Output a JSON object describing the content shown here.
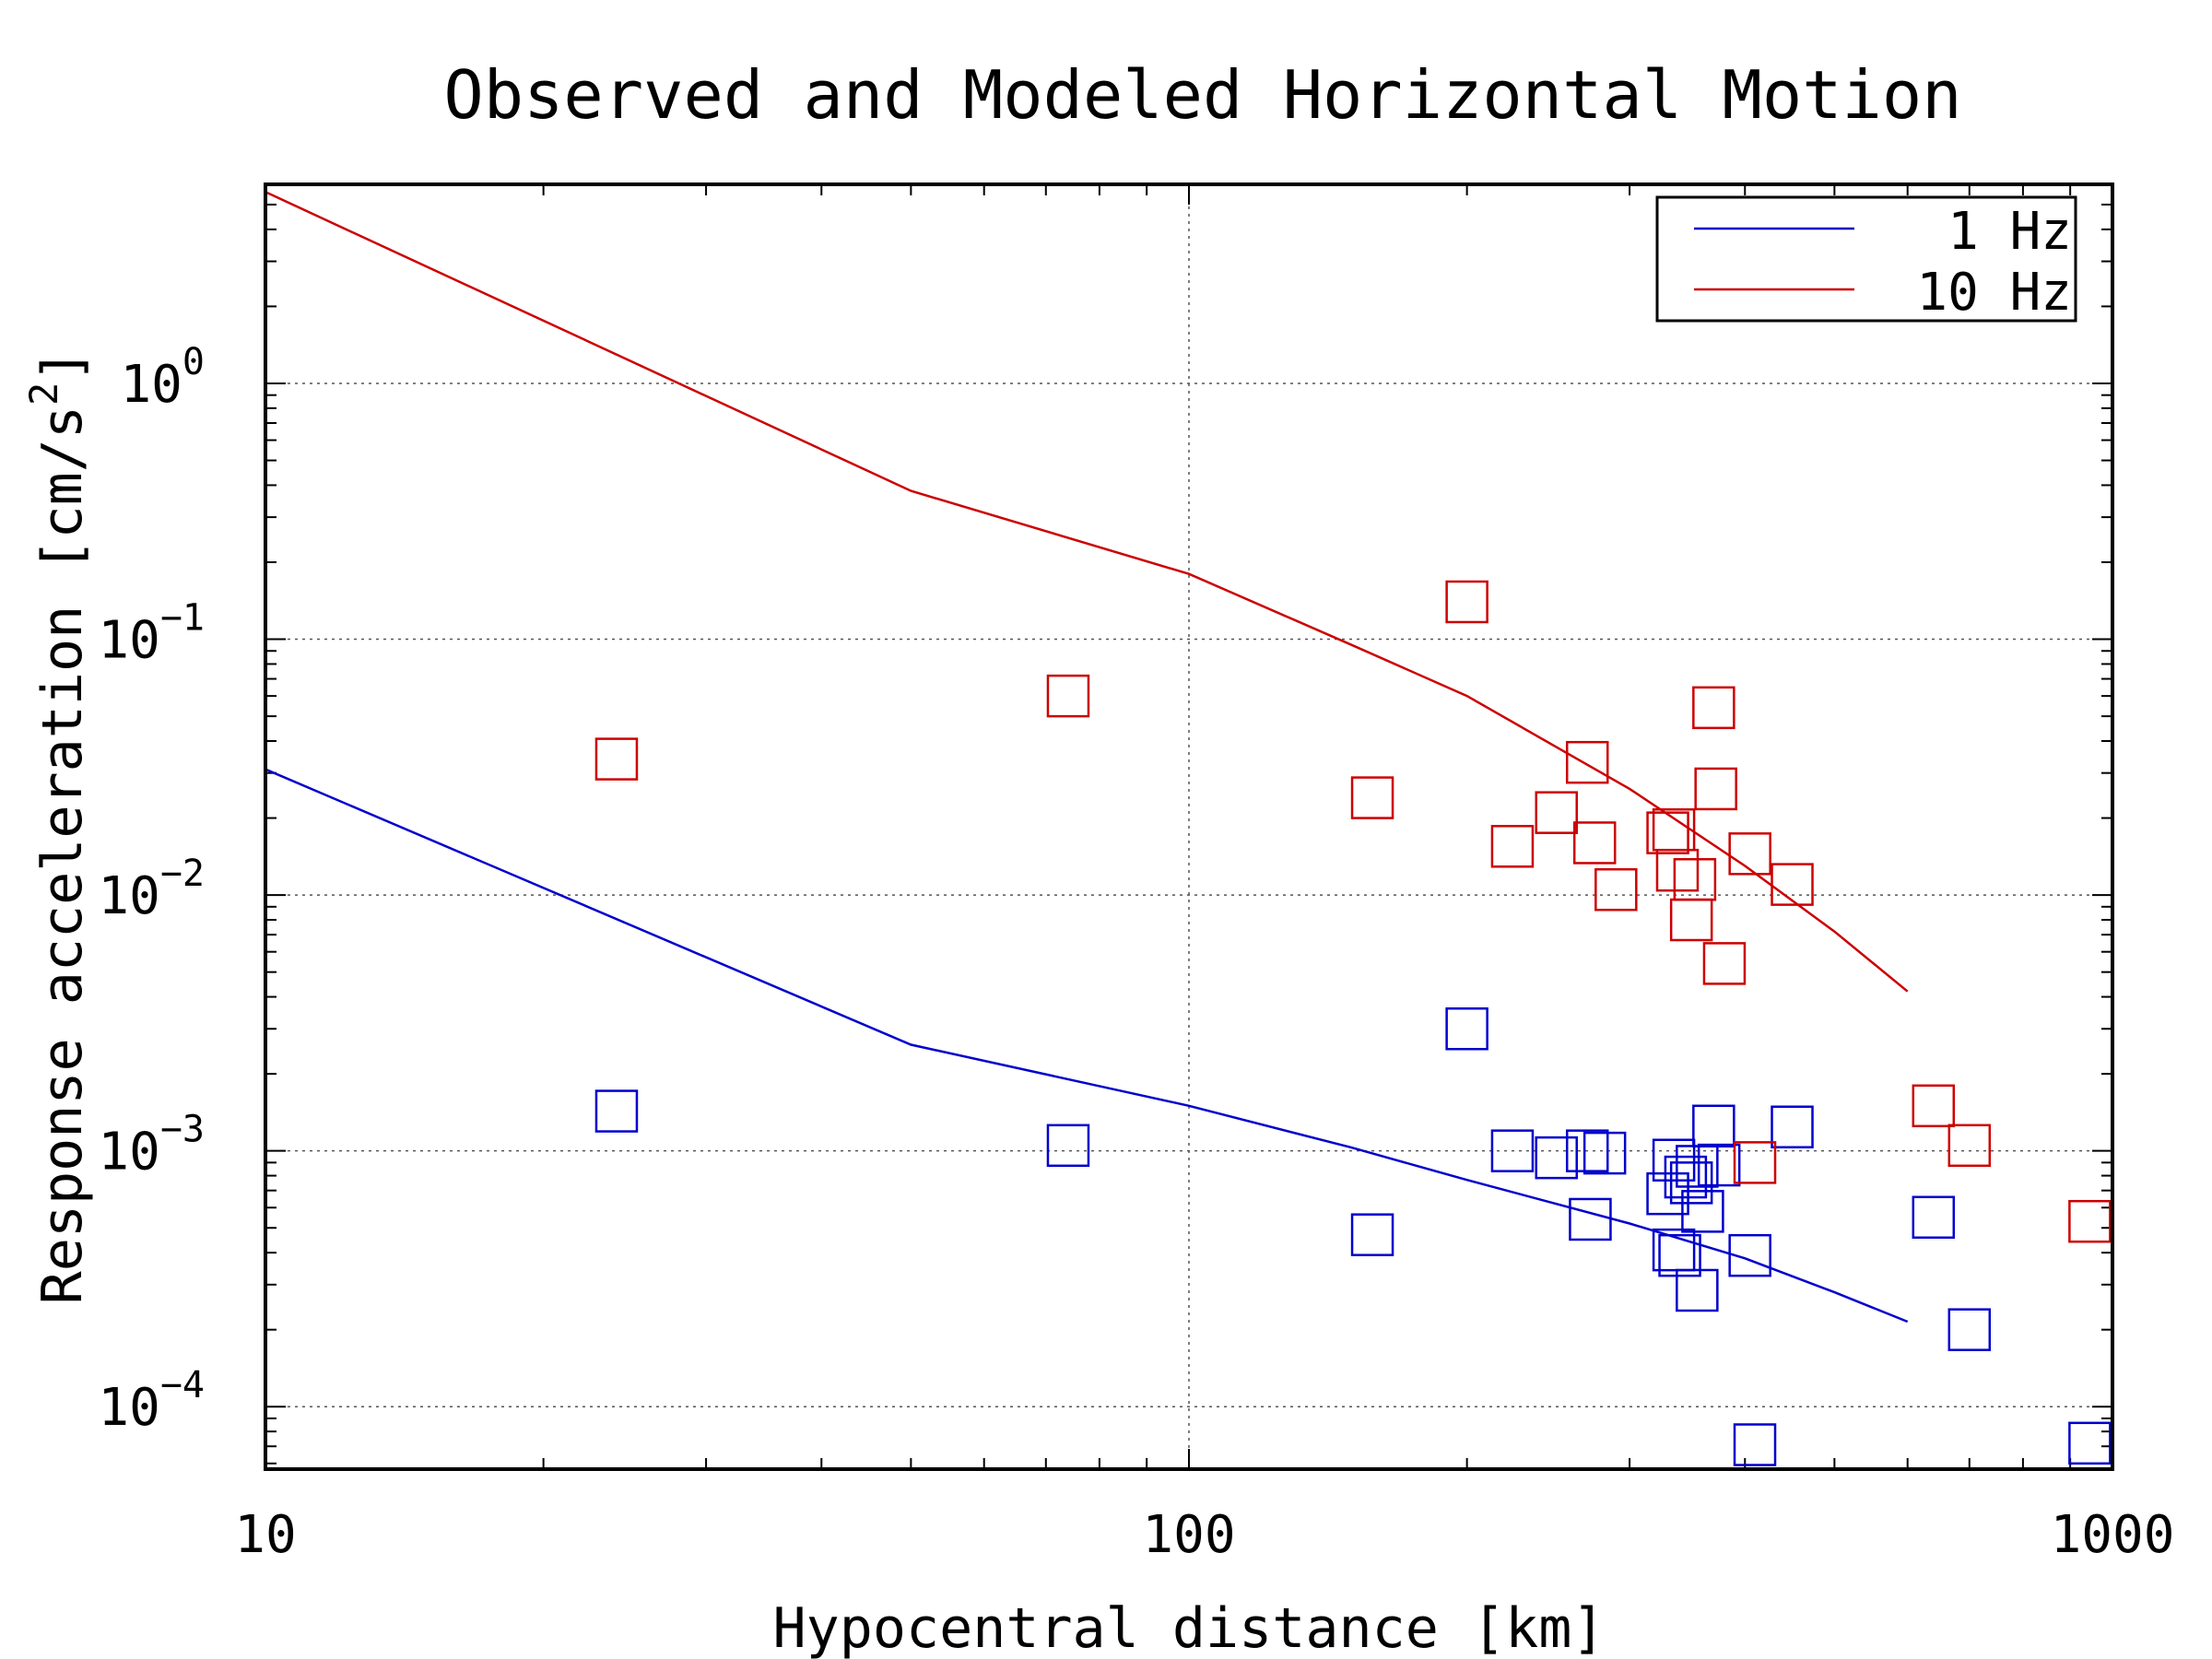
{
  "chart_data": {
    "type": "scatter",
    "title": "Observed and Modeled Horizontal Motion",
    "xlabel": "Hypocentral distance [km]",
    "ylabel": "Response acceleration [cm/s",
    "ylabel_sup": "2",
    "ylabel_close": "]",
    "xscale": "log",
    "yscale": "log",
    "xlim": [
      10,
      1000
    ],
    "ylim": [
      5.7e-05,
      6.0
    ],
    "grid": true,
    "legend_position": "top-right",
    "x_ticks": [
      {
        "value": 10,
        "label": "10"
      },
      {
        "value": 100,
        "label": "100"
      },
      {
        "value": 1000,
        "label": "1000"
      }
    ],
    "y_ticks": [
      {
        "value": 1,
        "base": "10",
        "exp": "0"
      },
      {
        "value": 0.1,
        "base": "10",
        "exp": "−1"
      },
      {
        "value": 0.01,
        "base": "10",
        "exp": "−2"
      },
      {
        "value": 0.001,
        "base": "10",
        "exp": "−3"
      },
      {
        "value": 0.0001,
        "base": "10",
        "exp": "−4"
      }
    ],
    "series": [
      {
        "name": "1 Hz",
        "color": "#0000cc",
        "model_line": {
          "x": [
            10,
            50,
            100,
            150,
            200,
            300,
            400,
            500,
            600
          ],
          "y": [
            0.031,
            0.0026,
            0.0015,
            0.00103,
            0.00077,
            0.00052,
            0.00038,
            0.00028,
            0.000215
          ]
        },
        "observed": {
          "x": [
            24,
            74,
            158,
            200,
            224,
            250,
            270,
            272,
            282,
            330,
            335,
            335,
            340,
            345,
            350,
            355,
            355,
            360,
            370,
            375,
            405,
            410,
            450,
            640,
            700,
            945
          ],
          "y": [
            0.00143,
            0.00105,
            0.00047,
            0.003,
            0.001,
            0.00094,
            0.001,
            0.00054,
            0.00098,
            0.00068,
            0.00092,
            0.00041,
            0.00039,
            0.00079,
            0.00075,
            0.000285,
            0.00087,
            0.00058,
            0.00125,
            0.00088,
            0.00039,
            7.1e-05,
            0.00124,
            0.00055,
            0.0002,
            7.2e-05
          ]
        }
      },
      {
        "name": "10 Hz",
        "color": "#cc0000",
        "model_line": {
          "x": [
            10,
            50,
            100,
            150,
            200,
            300,
            400,
            500,
            600
          ],
          "y": [
            5.6,
            0.38,
            0.18,
            0.095,
            0.06,
            0.026,
            0.013,
            0.0072,
            0.0042
          ]
        },
        "observed": {
          "x": [
            24,
            74,
            158,
            200,
            224,
            250,
            270,
            275,
            290,
            330,
            335,
            338,
            350,
            353,
            370,
            372,
            380,
            405,
            410,
            450,
            640,
            700,
            945
          ],
          "y": [
            0.034,
            0.06,
            0.024,
            0.14,
            0.0155,
            0.021,
            0.033,
            0.016,
            0.0105,
            0.0175,
            0.018,
            0.0125,
            0.008,
            0.0115,
            0.054,
            0.026,
            0.0054,
            0.0145,
            0.0009,
            0.011,
            0.0015,
            0.00105,
            0.00053
          ]
        }
      }
    ]
  }
}
